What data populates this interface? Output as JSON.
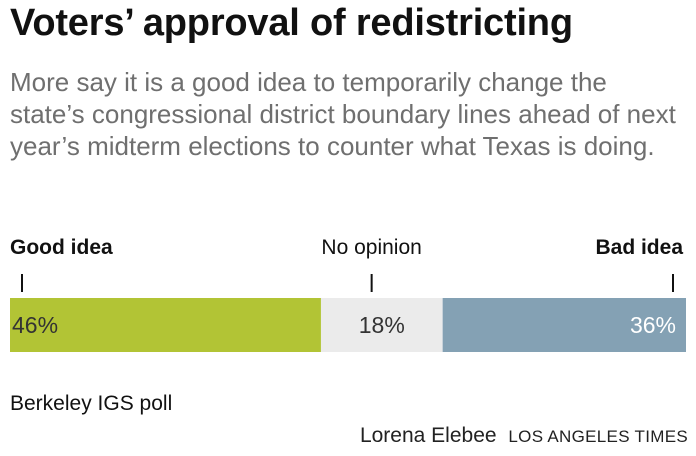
{
  "title": "Voters’ approval of redistricting",
  "subtitle": "More say it is a good idea to temporarily change the state’s congressional district boundary lines ahead of next year’s midterm elections to counter what Texas is doing.",
  "source": "Berkeley IGS poll",
  "credit": {
    "author": "Lorena Elebee",
    "publisher": "LOS ANGELES TIMES"
  },
  "chart_data": {
    "type": "bar",
    "orientation": "horizontal-stacked",
    "categories": [
      "Good idea",
      "No opinion",
      "Bad idea"
    ],
    "values": [
      46,
      18,
      36
    ],
    "value_labels": [
      "46%",
      "18%",
      "36%"
    ],
    "colors": [
      "#b2c435",
      "#ebebeb",
      "#84a1b4"
    ],
    "value_label_colors": [
      "#333333",
      "#333333",
      "#ffffff"
    ],
    "category_bold": [
      true,
      false,
      true
    ],
    "label_anchor": [
      "start",
      "middle",
      "end"
    ]
  }
}
